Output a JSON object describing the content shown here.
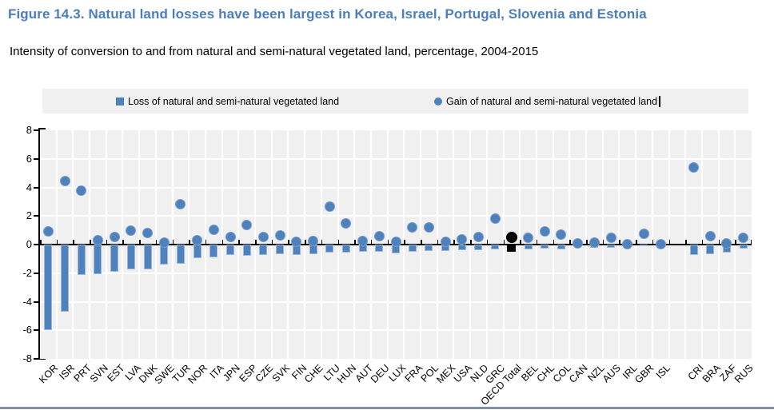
{
  "figure": {
    "title": "Figure 14.3. Natural land losses have been largest in Korea, Israel, Portugal, Slovenia and Estonia",
    "subtitle": "Intensity of conversion to and from natural and semi-natural vegetated land, percentage, 2004-2015"
  },
  "legend": {
    "loss_label": "Loss of natural and semi-natural vegetated land",
    "gain_label": "Gain of natural and semi-natural vegetated land"
  },
  "chart_data": {
    "type": "bar+scatter",
    "title": "Intensity of conversion to and from natural and semi-natural vegetated land, percentage, 2004-2015",
    "ylim": [
      -8,
      8
    ],
    "y_ticks": [
      8,
      6,
      4,
      2,
      0,
      -2,
      -4,
      -6,
      -8
    ],
    "grid": true,
    "legend_position": "top",
    "highlight_category": "OECD Total",
    "colors": {
      "series": "#4f81bd",
      "highlight": "#000000",
      "plot_background": "#f0f0f0"
    },
    "categories": [
      "KOR",
      "ISR",
      "PRT",
      "SVN",
      "EST",
      "LVA",
      "DNK",
      "SWE",
      "TUR",
      "NOR",
      "ITA",
      "JPN",
      "ESP",
      "CZE",
      "SVK",
      "FIN",
      "CHE",
      "LTU",
      "HUN",
      "AUT",
      "DEU",
      "LUX",
      "FRA",
      "POL",
      "MEX",
      "USA",
      "NLD",
      "GRC",
      "OECD Total",
      "BEL",
      "CHL",
      "COL",
      "CAN",
      "NZL",
      "AUS",
      "IRL",
      "GBR",
      "ISL",
      "",
      "CRI",
      "BRA",
      "ZAF",
      "RUS"
    ],
    "series": [
      {
        "name": "Loss of natural and semi-natural vegetated land",
        "type": "bar",
        "values": [
          -6.0,
          -4.7,
          -2.15,
          -2.05,
          -1.9,
          -1.75,
          -1.75,
          -1.4,
          -1.35,
          -0.95,
          -0.9,
          -0.75,
          -0.8,
          -0.7,
          -0.65,
          -0.7,
          -0.65,
          -0.55,
          -0.55,
          -0.5,
          -0.5,
          -0.6,
          -0.5,
          -0.45,
          -0.45,
          -0.4,
          -0.4,
          -0.35,
          -0.5,
          -0.35,
          -0.3,
          -0.35,
          -0.1,
          -0.25,
          -0.2,
          -0.15,
          -0.1,
          -0.1,
          null,
          -0.7,
          -0.65,
          -0.55,
          -0.3
        ]
      },
      {
        "name": "Gain of natural and semi-natural vegetated land",
        "type": "scatter",
        "values": [
          0.9,
          4.45,
          3.75,
          0.3,
          0.55,
          1.0,
          0.8,
          0.15,
          2.8,
          0.3,
          1.05,
          0.55,
          1.35,
          0.55,
          0.65,
          0.2,
          0.25,
          2.65,
          1.5,
          0.25,
          0.6,
          0.2,
          1.2,
          1.2,
          0.2,
          0.35,
          0.55,
          1.8,
          0.5,
          0.45,
          0.95,
          0.7,
          0.1,
          0.15,
          0.5,
          0.05,
          0.75,
          0.05,
          null,
          5.4,
          0.6,
          0.1,
          0.45
        ]
      }
    ]
  }
}
